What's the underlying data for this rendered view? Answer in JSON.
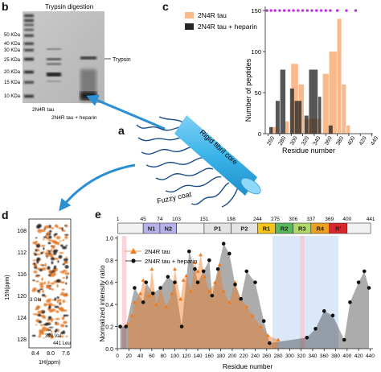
{
  "panel_labels": {
    "b": "b",
    "c": "c",
    "a": "a",
    "d": "d",
    "e": "e"
  },
  "gel": {
    "title": "Trypsin digestion",
    "markers": [
      "50 KDa",
      "40 KDa",
      "30 KDa",
      "25 KDa",
      "20 KDa",
      "15 KDa",
      "10 KDa"
    ],
    "lane_labels": [
      "2N4R tau",
      "2N4R tau + heparin"
    ],
    "annotation": "Trypsin"
  },
  "schematic": {
    "core_label": "Rigid fibril core",
    "coat_label": "Fuzzy coat",
    "colors": {
      "core": "#3bb4ea",
      "coat": "#1b4f8a",
      "arrow": "#2b8fd6"
    }
  },
  "nmr": {
    "y_axis_label": "15N(ppm)",
    "y_ticks": [
      "108",
      "112",
      "116",
      "120",
      "124",
      "128"
    ],
    "x_axis_label": "1H(ppm)",
    "x_ticks": [
      "8.4",
      "8.0",
      "7.6"
    ],
    "annotations": [
      "393 Val",
      "441 Leu",
      "3 Glu"
    ],
    "colors": {
      "spectrum_1": "#e87722",
      "spectrum_2": "#222222"
    }
  },
  "chart_data": [
    {
      "type": "bar",
      "panel": "c",
      "xlabel": "Residue number",
      "ylabel": "Number of peptides",
      "x_ticks": [
        260,
        280,
        300,
        320,
        340,
        360,
        380,
        400,
        420,
        440
      ],
      "y_ticks": [
        0,
        50,
        100,
        150
      ],
      "xlim": [
        255,
        442
      ],
      "ylim": [
        0,
        155
      ],
      "legend_position": "top-left",
      "series": [
        {
          "name": "2N4R tau",
          "color": "#f9b98a",
          "bars": [
            [
              265,
              274,
              8
            ],
            [
              290,
              296,
              15
            ],
            [
              300,
              312,
              85
            ],
            [
              313,
              322,
              60
            ],
            [
              323,
              335,
              18
            ],
            [
              336,
              352,
              18
            ],
            [
              355,
              365,
              73
            ],
            [
              366,
              379,
              100
            ],
            [
              380,
              387,
              140
            ],
            [
              388,
              395,
              60
            ],
            [
              396,
              402,
              10
            ]
          ]
        },
        {
          "name": "2N4R tau + heparin",
          "color": "#262626",
          "bars": [
            [
              262,
              268,
              8
            ],
            [
              273,
              280,
              40
            ],
            [
              281,
              290,
              78
            ],
            [
              298,
              305,
              55
            ],
            [
              306,
              318,
              40
            ],
            [
              323,
              330,
              22
            ],
            [
              331,
              346,
              78
            ],
            [
              347,
              352,
              45
            ],
            [
              365,
              372,
              10
            ]
          ]
        }
      ],
      "top_markers": {
        "value": 150,
        "color": "#c12fe0",
        "positions": [
          258,
          265,
          272,
          280,
          288,
          296,
          304,
          312,
          320,
          328,
          336,
          344,
          352,
          360,
          368,
          380,
          396,
          412
        ]
      }
    },
    {
      "type": "scatter",
      "panel": "e",
      "xlabel": "Residue number",
      "ylabel": "Normalized intensity ratio",
      "x_ticks": [
        0,
        20,
        40,
        60,
        80,
        100,
        120,
        140,
        160,
        180,
        200,
        220,
        240,
        260,
        280,
        300,
        320,
        340,
        360,
        380,
        400,
        420,
        440
      ],
      "y_ticks": [
        0.0,
        0.2,
        0.4,
        0.6,
        0.8,
        1.0
      ],
      "xlim": [
        0,
        445
      ],
      "ylim": [
        0,
        1.02
      ],
      "legend_position": "top-left",
      "domain_map": {
        "boundaries": [
          "1",
          "45",
          "74",
          "103",
          "151",
          "198",
          "244",
          "275",
          "306",
          "337",
          "369",
          "400",
          "441"
        ],
        "domains": [
          {
            "label": "",
            "start": 1,
            "end": 45,
            "color": "#f2f2f2"
          },
          {
            "label": "N1",
            "start": 45,
            "end": 74,
            "color": "#b7b3ea"
          },
          {
            "label": "N2",
            "start": 74,
            "end": 103,
            "color": "#b7b3ea"
          },
          {
            "label": "",
            "start": 103,
            "end": 151,
            "color": "#f2f2f2"
          },
          {
            "label": "P1",
            "start": 151,
            "end": 198,
            "color": "#e4e4e4"
          },
          {
            "label": "P2",
            "start": 198,
            "end": 244,
            "color": "#e4e4e4"
          },
          {
            "label": "R1",
            "start": 244,
            "end": 275,
            "color": "#f5c518"
          },
          {
            "label": "R2",
            "start": 275,
            "end": 306,
            "color": "#5cb85c"
          },
          {
            "label": "R3",
            "start": 306,
            "end": 337,
            "color": "#b0d86a"
          },
          {
            "label": "R4",
            "start": 337,
            "end": 369,
            "color": "#f0a020"
          },
          {
            "label": "R'",
            "start": 369,
            "end": 400,
            "color": "#d8262d"
          },
          {
            "label": "",
            "start": 400,
            "end": 441,
            "color": "#f2f2f2"
          }
        ]
      },
      "highlight_regions": [
        {
          "start": 8,
          "end": 16,
          "color": "#f7c6cf"
        },
        {
          "start": 270,
          "end": 385,
          "color": "#cfe0f7"
        },
        {
          "start": 318,
          "end": 326,
          "color": "#f7c6cf"
        }
      ],
      "series": [
        {
          "name": "2N4R tau",
          "color": "#f07a1e",
          "marker": "triangle",
          "x": [
            18,
            25,
            30,
            40,
            45,
            55,
            60,
            68,
            75,
            85,
            95,
            100,
            110,
            115,
            120,
            128,
            135,
            140,
            145,
            152,
            160,
            170,
            178,
            185,
            195,
            205,
            215,
            225,
            235,
            250,
            262,
            280
          ],
          "y": [
            0.22,
            0.3,
            0.42,
            0.5,
            0.62,
            0.48,
            0.72,
            0.4,
            0.55,
            0.38,
            0.5,
            0.72,
            0.45,
            0.62,
            0.66,
            0.52,
            0.78,
            0.7,
            0.85,
            0.65,
            0.52,
            0.6,
            0.76,
            0.52,
            0.42,
            0.6,
            0.45,
            0.38,
            0.3,
            0.2,
            0.12,
            0.08
          ]
        },
        {
          "name": "2N4R tau + heparin",
          "color": "#111111",
          "marker": "circle",
          "x": [
            5,
            15,
            30,
            45,
            50,
            62,
            75,
            88,
            100,
            112,
            125,
            135,
            140,
            150,
            160,
            165,
            175,
            185,
            195,
            205,
            215,
            225,
            240,
            255,
            265,
            330,
            345,
            360,
            375,
            395,
            405,
            420,
            430,
            438
          ],
          "y": [
            0.2,
            0.2,
            0.55,
            0.42,
            0.6,
            0.5,
            0.55,
            0.65,
            0.6,
            0.2,
            0.88,
            0.72,
            0.6,
            0.7,
            0.8,
            0.48,
            0.72,
            0.95,
            0.86,
            0.58,
            0.45,
            0.7,
            0.6,
            0.25,
            0.05,
            0.1,
            0.18,
            0.34,
            0.3,
            0.08,
            0.42,
            0.6,
            0.7,
            0.55
          ]
        }
      ]
    }
  ]
}
